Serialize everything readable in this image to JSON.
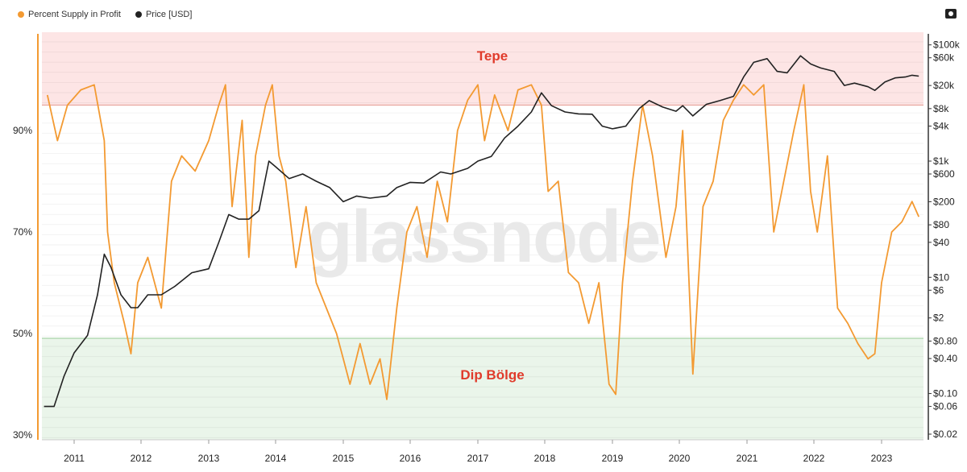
{
  "legend": {
    "series1": "Percent Supply in Profit",
    "series2": "Price [USD]"
  },
  "colors": {
    "supply": "#f39a32",
    "price": "#222222",
    "top_zone": "#fde5e5",
    "top_line": "#e8a7a0",
    "bottom_zone": "#eaf5ea",
    "bottom_line": "#a8d4a8",
    "label": "#e03b2b"
  },
  "annotations": {
    "top": "Tepe",
    "bottom": "Dip Bölge"
  },
  "watermark": "glassnode",
  "chart_data": {
    "type": "line",
    "title": "",
    "x_ticks": [
      "2011",
      "2012",
      "2013",
      "2014",
      "2015",
      "2016",
      "2017",
      "2018",
      "2019",
      "2020",
      "2021",
      "2022",
      "2023"
    ],
    "left_axis": {
      "ticks": [
        "90%",
        "70%",
        "50%",
        "30%"
      ],
      "tick_values": [
        90,
        70,
        50,
        30
      ],
      "range": [
        30,
        110
      ]
    },
    "right_axis": {
      "scale": "log",
      "ticks": [
        "$100k",
        "$60k",
        "$20k",
        "$8k",
        "$4k",
        "$1k",
        "$600",
        "$200",
        "$80",
        "$40",
        "$10",
        "$6",
        "$2",
        "$0.80",
        "$0.40",
        "$0.10",
        "$0.06",
        "$0.02"
      ],
      "tick_values": [
        100000,
        60000,
        20000,
        8000,
        4000,
        1000,
        600,
        200,
        80,
        40,
        10,
        6,
        2,
        0.8,
        0.4,
        0.1,
        0.06,
        0.02
      ]
    },
    "bands": [
      {
        "label": "Tepe",
        "from": 95,
        "to": 110
      },
      {
        "label": "Dip Bölge",
        "from": 30,
        "to": 50
      }
    ],
    "series": [
      {
        "name": "Percent Supply in Profit",
        "axis": "left",
        "points": [
          [
            2010.6,
            97
          ],
          [
            2010.75,
            88
          ],
          [
            2010.9,
            95
          ],
          [
            2011.1,
            98
          ],
          [
            2011.3,
            99
          ],
          [
            2011.45,
            88
          ],
          [
            2011.5,
            70
          ],
          [
            2011.6,
            60
          ],
          [
            2011.75,
            52
          ],
          [
            2011.85,
            46
          ],
          [
            2011.95,
            60
          ],
          [
            2012.1,
            65
          ],
          [
            2012.3,
            55
          ],
          [
            2012.45,
            80
          ],
          [
            2012.6,
            85
          ],
          [
            2012.8,
            82
          ],
          [
            2013.0,
            88
          ],
          [
            2013.15,
            95
          ],
          [
            2013.25,
            99
          ],
          [
            2013.35,
            75
          ],
          [
            2013.5,
            92
          ],
          [
            2013.6,
            65
          ],
          [
            2013.7,
            85
          ],
          [
            2013.85,
            95
          ],
          [
            2013.95,
            99
          ],
          [
            2014.05,
            85
          ],
          [
            2014.15,
            80
          ],
          [
            2014.3,
            63
          ],
          [
            2014.45,
            75
          ],
          [
            2014.6,
            60
          ],
          [
            2014.75,
            55
          ],
          [
            2014.9,
            50
          ],
          [
            2015.0,
            45
          ],
          [
            2015.1,
            40
          ],
          [
            2015.25,
            48
          ],
          [
            2015.4,
            40
          ],
          [
            2015.55,
            45
          ],
          [
            2015.65,
            37
          ],
          [
            2015.8,
            55
          ],
          [
            2015.95,
            70
          ],
          [
            2016.1,
            75
          ],
          [
            2016.25,
            65
          ],
          [
            2016.4,
            80
          ],
          [
            2016.55,
            72
          ],
          [
            2016.7,
            90
          ],
          [
            2016.85,
            96
          ],
          [
            2017.0,
            99
          ],
          [
            2017.1,
            88
          ],
          [
            2017.25,
            97
          ],
          [
            2017.45,
            90
          ],
          [
            2017.6,
            98
          ],
          [
            2017.8,
            99
          ],
          [
            2017.95,
            95
          ],
          [
            2018.05,
            78
          ],
          [
            2018.2,
            80
          ],
          [
            2018.35,
            62
          ],
          [
            2018.5,
            60
          ],
          [
            2018.65,
            52
          ],
          [
            2018.8,
            60
          ],
          [
            2018.95,
            40
          ],
          [
            2019.05,
            38
          ],
          [
            2019.15,
            60
          ],
          [
            2019.3,
            80
          ],
          [
            2019.45,
            95
          ],
          [
            2019.6,
            85
          ],
          [
            2019.8,
            65
          ],
          [
            2019.95,
            75
          ],
          [
            2020.05,
            90
          ],
          [
            2020.2,
            42
          ],
          [
            2020.35,
            75
          ],
          [
            2020.5,
            80
          ],
          [
            2020.65,
            92
          ],
          [
            2020.8,
            96
          ],
          [
            2020.95,
            99
          ],
          [
            2021.1,
            97
          ],
          [
            2021.25,
            99
          ],
          [
            2021.4,
            70
          ],
          [
            2021.55,
            80
          ],
          [
            2021.7,
            90
          ],
          [
            2021.85,
            99
          ],
          [
            2021.95,
            78
          ],
          [
            2022.05,
            70
          ],
          [
            2022.2,
            85
          ],
          [
            2022.35,
            55
          ],
          [
            2022.5,
            52
          ],
          [
            2022.65,
            48
          ],
          [
            2022.8,
            45
          ],
          [
            2022.9,
            46
          ],
          [
            2023.0,
            60
          ],
          [
            2023.15,
            70
          ],
          [
            2023.3,
            72
          ],
          [
            2023.45,
            76
          ],
          [
            2023.55,
            73
          ]
        ]
      },
      {
        "name": "Price [USD]",
        "axis": "right",
        "points": [
          [
            2010.55,
            0.06
          ],
          [
            2010.7,
            0.06
          ],
          [
            2010.85,
            0.2
          ],
          [
            2011.0,
            0.5
          ],
          [
            2011.2,
            1.0
          ],
          [
            2011.35,
            5
          ],
          [
            2011.45,
            25
          ],
          [
            2011.55,
            15
          ],
          [
            2011.7,
            5
          ],
          [
            2011.85,
            3
          ],
          [
            2011.95,
            3
          ],
          [
            2012.1,
            5
          ],
          [
            2012.3,
            5
          ],
          [
            2012.5,
            7
          ],
          [
            2012.75,
            12
          ],
          [
            2013.0,
            14
          ],
          [
            2013.15,
            40
          ],
          [
            2013.3,
            120
          ],
          [
            2013.45,
            100
          ],
          [
            2013.6,
            100
          ],
          [
            2013.75,
            140
          ],
          [
            2013.9,
            1000
          ],
          [
            2014.0,
            800
          ],
          [
            2014.2,
            500
          ],
          [
            2014.4,
            600
          ],
          [
            2014.6,
            450
          ],
          [
            2014.8,
            350
          ],
          [
            2015.0,
            200
          ],
          [
            2015.2,
            250
          ],
          [
            2015.4,
            230
          ],
          [
            2015.65,
            250
          ],
          [
            2015.8,
            350
          ],
          [
            2016.0,
            430
          ],
          [
            2016.2,
            420
          ],
          [
            2016.45,
            650
          ],
          [
            2016.6,
            600
          ],
          [
            2016.85,
            750
          ],
          [
            2017.0,
            1000
          ],
          [
            2017.2,
            1200
          ],
          [
            2017.4,
            2500
          ],
          [
            2017.6,
            4000
          ],
          [
            2017.8,
            7000
          ],
          [
            2017.95,
            15000
          ],
          [
            2018.1,
            9000
          ],
          [
            2018.3,
            7000
          ],
          [
            2018.5,
            6500
          ],
          [
            2018.7,
            6400
          ],
          [
            2018.85,
            4000
          ],
          [
            2019.0,
            3600
          ],
          [
            2019.2,
            4000
          ],
          [
            2019.4,
            8000
          ],
          [
            2019.55,
            11000
          ],
          [
            2019.75,
            8500
          ],
          [
            2019.95,
            7200
          ],
          [
            2020.05,
            9000
          ],
          [
            2020.2,
            6000
          ],
          [
            2020.4,
            9500
          ],
          [
            2020.6,
            11000
          ],
          [
            2020.8,
            13000
          ],
          [
            2020.95,
            28000
          ],
          [
            2021.1,
            50000
          ],
          [
            2021.3,
            58000
          ],
          [
            2021.45,
            35000
          ],
          [
            2021.6,
            33000
          ],
          [
            2021.8,
            65000
          ],
          [
            2021.95,
            47000
          ],
          [
            2022.1,
            40000
          ],
          [
            2022.3,
            35000
          ],
          [
            2022.45,
            20000
          ],
          [
            2022.6,
            22000
          ],
          [
            2022.8,
            19000
          ],
          [
            2022.9,
            16500
          ],
          [
            2023.05,
            23000
          ],
          [
            2023.2,
            27000
          ],
          [
            2023.35,
            28000
          ],
          [
            2023.45,
            30000
          ],
          [
            2023.55,
            29000
          ]
        ]
      }
    ]
  }
}
